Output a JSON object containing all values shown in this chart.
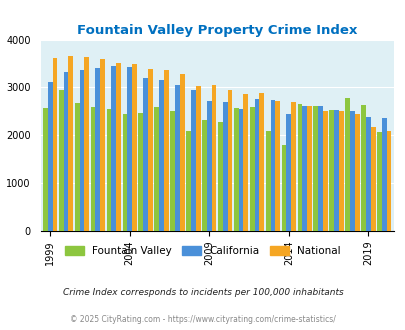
{
  "title": "Fountain Valley Property Crime Index",
  "years": [
    1999,
    2000,
    2001,
    2002,
    2003,
    2004,
    2005,
    2006,
    2007,
    2008,
    2009,
    2010,
    2011,
    2012,
    2013,
    2014,
    2015,
    2016,
    2017,
    2018,
    2019,
    2020
  ],
  "fountain_valley": [
    2580,
    2950,
    2670,
    2600,
    2540,
    2450,
    2470,
    2590,
    2500,
    2100,
    2310,
    2280,
    2570,
    2600,
    2080,
    1800,
    2650,
    2620,
    2520,
    2780,
    2630,
    2070
  ],
  "california": [
    3110,
    3320,
    3360,
    3410,
    3440,
    3430,
    3200,
    3150,
    3060,
    2950,
    2720,
    2700,
    2560,
    2760,
    2730,
    2450,
    2620,
    2620,
    2520,
    2500,
    2390,
    2360
  ],
  "national": [
    3610,
    3660,
    3630,
    3590,
    3510,
    3480,
    3390,
    3360,
    3280,
    3040,
    3050,
    2950,
    2870,
    2880,
    2720,
    2700,
    2620,
    2510,
    2500,
    2450,
    2170,
    2100
  ],
  "fv_color": "#8DC63F",
  "ca_color": "#4A90D9",
  "nat_color": "#F5A623",
  "bg_color": "#DFF0F5",
  "title_color": "#0070C0",
  "ylabel_max": 4000,
  "ylabel_min": 0,
  "subtitle": "Crime Index corresponds to incidents per 100,000 inhabitants",
  "footer": "© 2025 CityRating.com - https://www.cityrating.com/crime-statistics/",
  "legend_labels": [
    "Fountain Valley",
    "California",
    "National"
  ],
  "tick_years": [
    1999,
    2004,
    2009,
    2014,
    2019
  ]
}
